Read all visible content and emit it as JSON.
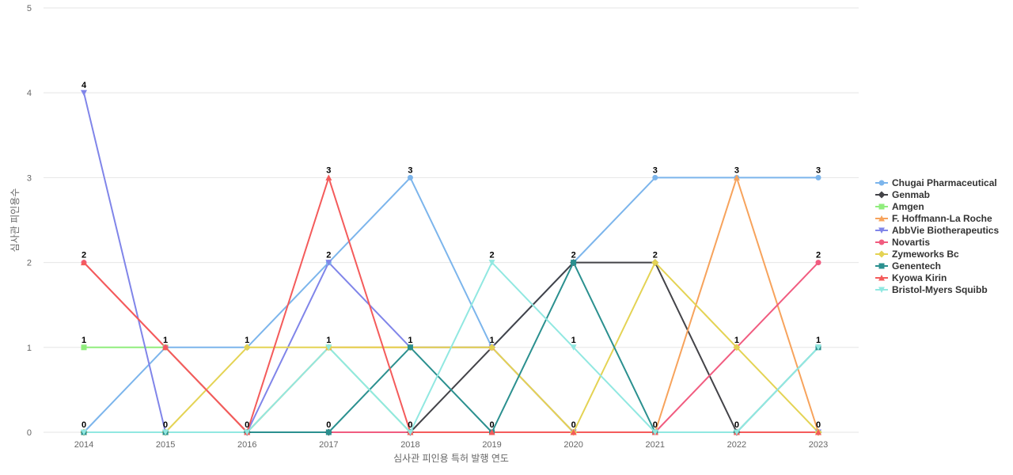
{
  "chart_data": {
    "type": "line",
    "title": "",
    "xlabel": "심사관 피인용 특허 발행 연도",
    "ylabel": "심사관 피인용수",
    "x": [
      "2014",
      "2015",
      "2016",
      "2017",
      "2018",
      "2019",
      "2020",
      "2021",
      "2022",
      "2023"
    ],
    "ylim": [
      0,
      5
    ],
    "yticks": [
      0,
      1,
      2,
      3,
      4,
      5
    ],
    "grid": true,
    "legend_position": "right",
    "series": [
      {
        "name": "Chugai Pharmaceutical",
        "color": "#7cb5ec",
        "marker": "circle",
        "values": [
          0,
          1,
          1,
          2,
          3,
          1,
          2,
          3,
          3,
          3
        ]
      },
      {
        "name": "Genmab",
        "color": "#434348",
        "marker": "diamond",
        "values": [
          0,
          0,
          0,
          0,
          0,
          1,
          2,
          2,
          0,
          0
        ]
      },
      {
        "name": "Amgen",
        "color": "#90ed7d",
        "marker": "square",
        "values": [
          1,
          1,
          0,
          1,
          0,
          0,
          0,
          0,
          0,
          0
        ]
      },
      {
        "name": "F. Hoffmann-La Roche",
        "color": "#f7a35c",
        "marker": "triangle",
        "values": [
          0,
          0,
          0,
          1,
          1,
          1,
          0,
          0,
          3,
          0
        ]
      },
      {
        "name": "AbbVie Biotherapeutics",
        "color": "#8085e9",
        "marker": "triangle-down",
        "values": [
          4,
          0,
          0,
          2,
          1,
          1,
          0,
          0,
          0,
          0
        ]
      },
      {
        "name": "Novartis",
        "color": "#f15c80",
        "marker": "circle",
        "values": [
          2,
          1,
          0,
          0,
          0,
          0,
          0,
          0,
          1,
          2
        ]
      },
      {
        "name": "Zymeworks Bc",
        "color": "#e4d354",
        "marker": "diamond",
        "values": [
          0,
          0,
          1,
          1,
          1,
          1,
          0,
          2,
          1,
          0
        ]
      },
      {
        "name": "Genentech",
        "color": "#2b908f",
        "marker": "square",
        "values": [
          0,
          0,
          0,
          0,
          1,
          0,
          2,
          0,
          0,
          1
        ]
      },
      {
        "name": "Kyowa Kirin",
        "color": "#f45b5b",
        "marker": "triangle",
        "values": [
          2,
          1,
          0,
          3,
          0,
          0,
          0,
          0,
          0,
          0
        ]
      },
      {
        "name": "Bristol-Myers Squibb",
        "color": "#91e8e1",
        "marker": "triangle-down",
        "values": [
          0,
          0,
          0,
          1,
          0,
          2,
          1,
          0,
          0,
          1
        ]
      }
    ],
    "data_labels": [
      {
        "x": "2014",
        "text": "4"
      },
      {
        "x": "2014",
        "text": "2"
      },
      {
        "x": "2014",
        "text": "1"
      },
      {
        "x": "2014",
        "text": "0"
      },
      {
        "x": "2015",
        "text": "1"
      },
      {
        "x": "2015",
        "text": "0"
      },
      {
        "x": "2016",
        "text": "1"
      },
      {
        "x": "2016",
        "text": "0"
      },
      {
        "x": "2017",
        "text": "3"
      },
      {
        "x": "2017",
        "text": "2"
      },
      {
        "x": "2017",
        "text": "1"
      },
      {
        "x": "2017",
        "text": "0"
      },
      {
        "x": "2018",
        "text": "3"
      },
      {
        "x": "2018",
        "text": "1"
      },
      {
        "x": "2018",
        "text": "0"
      },
      {
        "x": "2019",
        "text": "2"
      },
      {
        "x": "2019",
        "text": "1"
      },
      {
        "x": "2019",
        "text": "0"
      },
      {
        "x": "2020",
        "text": "2"
      },
      {
        "x": "2020",
        "text": "1"
      },
      {
        "x": "2020",
        "text": "0"
      },
      {
        "x": "2021",
        "text": "3"
      },
      {
        "x": "2021",
        "text": "2"
      },
      {
        "x": "2021",
        "text": "0"
      },
      {
        "x": "2022",
        "text": "3"
      },
      {
        "x": "2022",
        "text": "1"
      },
      {
        "x": "2022",
        "text": "0"
      },
      {
        "x": "2023",
        "text": "3"
      },
      {
        "x": "2023",
        "text": "2"
      },
      {
        "x": "2023",
        "text": "1"
      },
      {
        "x": "2023",
        "text": "0"
      }
    ]
  }
}
